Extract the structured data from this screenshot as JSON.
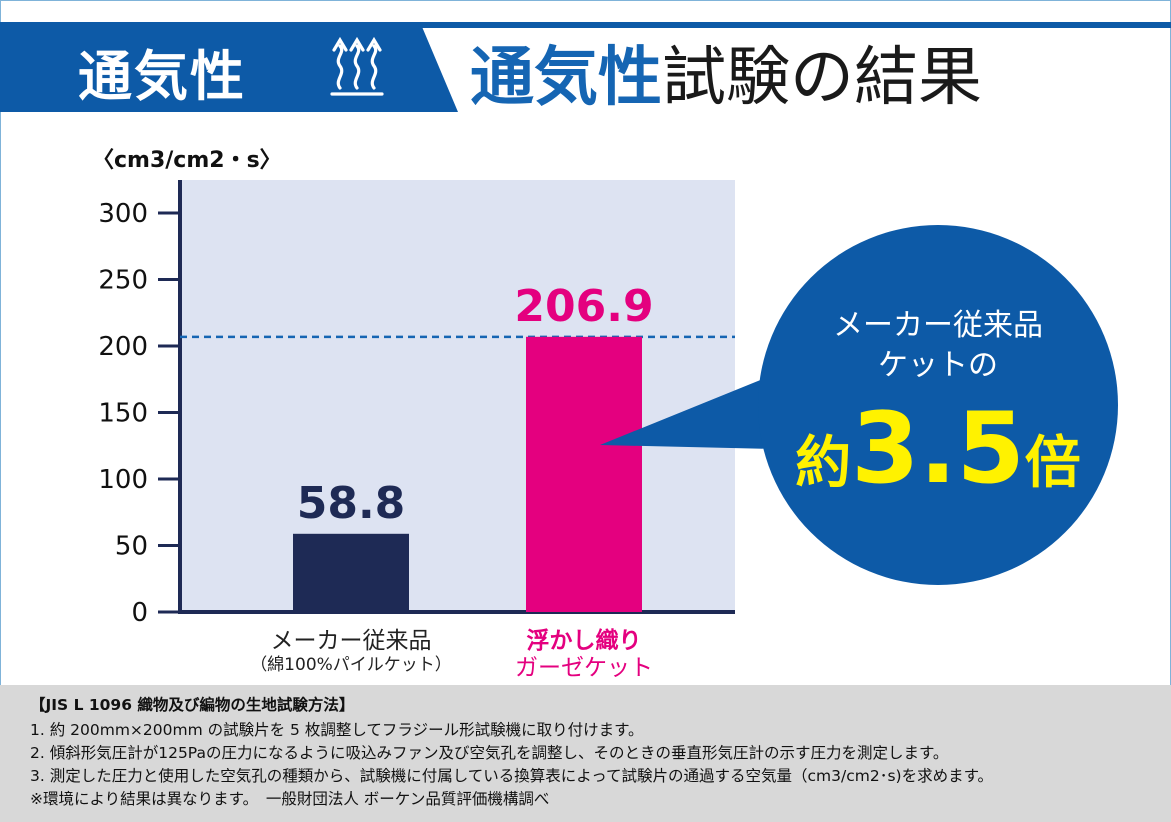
{
  "header": {
    "badge": "通気性",
    "badge_icon": "heat-waves-icon",
    "title_highlight": "通気性",
    "title_rest": "試験の結果",
    "accent_color": "#0d5aa7"
  },
  "chart_data": {
    "type": "bar",
    "unit_label": "〈cm3/cm2・s〉",
    "ylim": [
      0,
      300
    ],
    "yticks": [
      "300",
      "250",
      "200",
      "150",
      "100",
      "50",
      "0"
    ],
    "ytick_values": [
      300,
      250,
      200,
      150,
      100,
      50,
      0
    ],
    "categories": [
      {
        "line1": "メーカー従来品",
        "line2": "（綿100%パイルケット）",
        "color": "#1e2a55"
      },
      {
        "line1": "浮かし織り",
        "line2": "ガーゼケット",
        "color": "#e4007f"
      }
    ],
    "values": [
      58.8,
      206.9
    ],
    "value_labels": [
      "58.8",
      "206.9"
    ],
    "reference_line": 206.9,
    "plot_bg": "#dde3f2",
    "axis_color": "#1e2a55"
  },
  "callout": {
    "line1": "メーカー従来品",
    "line2": "ケットの",
    "prefix": "約",
    "multiplier": "3.5",
    "suffix": "倍",
    "bg_color": "#0d5aa7",
    "highlight_color": "#fff200"
  },
  "method": {
    "heading": "【JIS L 1096 織物及び編物の生地試験方法】",
    "steps": [
      "1. 約 200mm×200mm の試験片を 5 枚調整してフラジール形試験機に取り付けます。",
      "2. 傾斜形気圧計が125Paの圧力になるように吸込みファン及び空気孔を調整し、そのときの垂直形気圧計の示す圧力を測定します。",
      "3. 測定した圧力と使用した空気孔の種類から、試験機に付属している換算表によって試験片の通過する空気量（cm3/cm2･s)を求めます。"
    ],
    "note": "※環境により結果は異なります。　一般財団法人 ボーケン品質評価機構調べ"
  }
}
